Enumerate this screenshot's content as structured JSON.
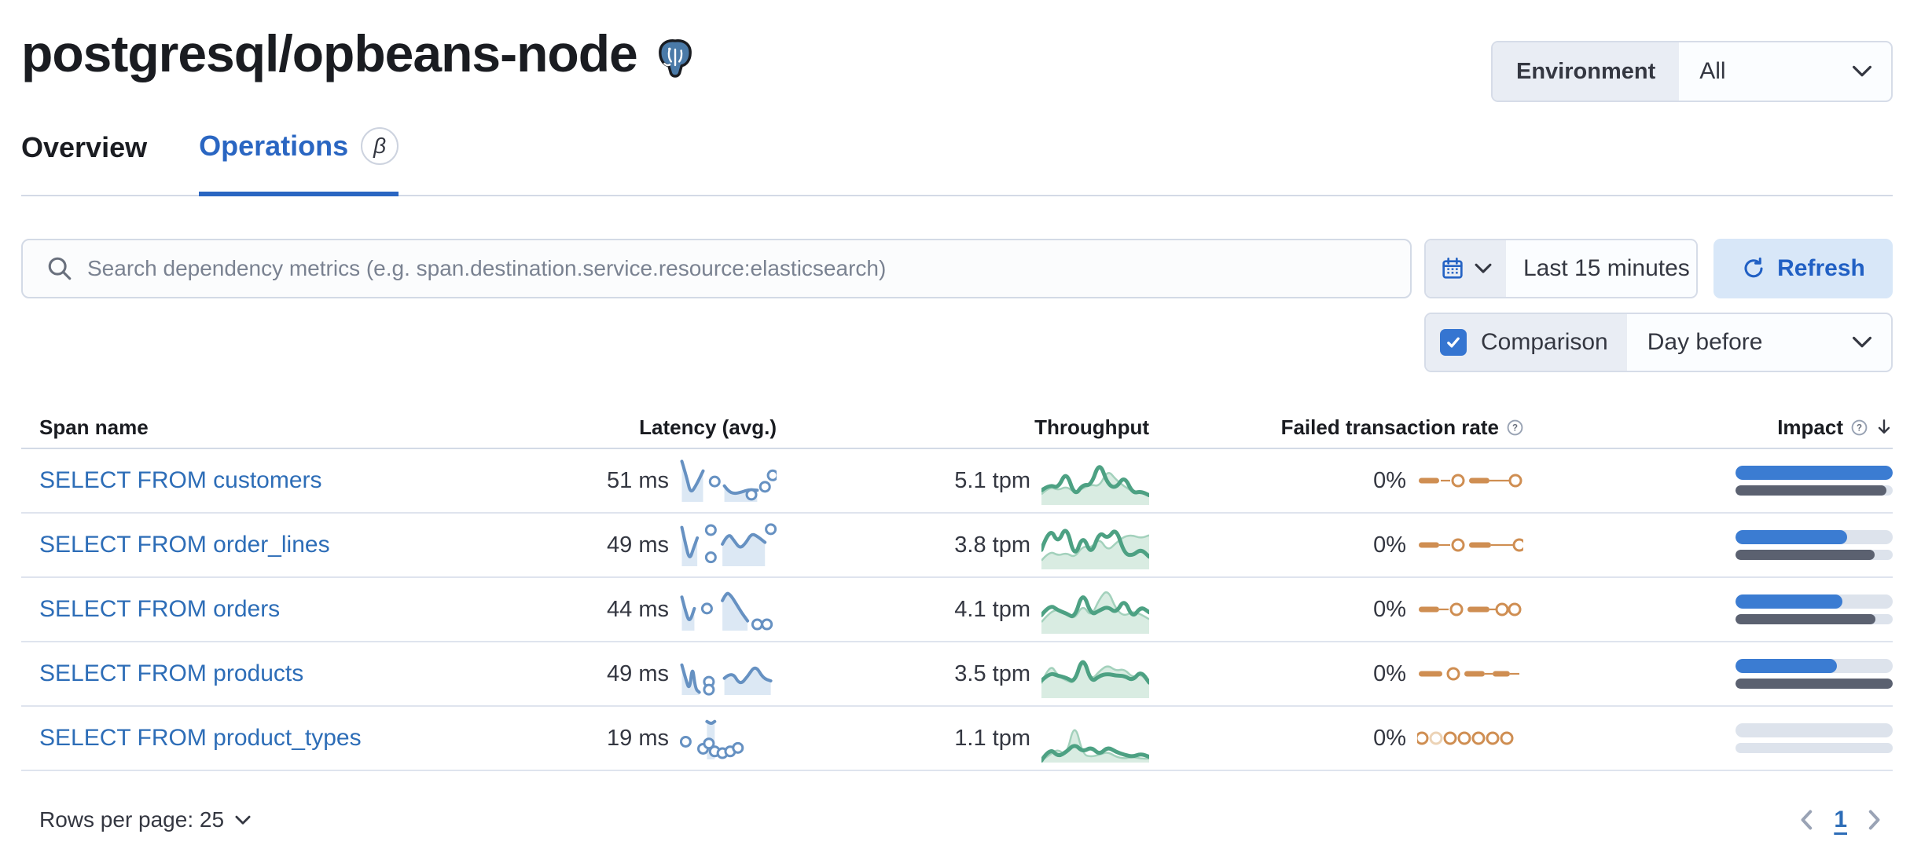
{
  "header": {
    "title": "postgresql/opbeans-node",
    "logo_icon": "postgresql-elephant",
    "env_label": "Environment",
    "env_value": "All"
  },
  "tabs": [
    {
      "label": "Overview",
      "active": false
    },
    {
      "label": "Operations",
      "active": true,
      "beta_badge": "β"
    }
  ],
  "toolbar": {
    "search_placeholder": "Search dependency metrics (e.g. span.destination.service.resource:elasticsearch)",
    "time_range": "Last 15 minutes",
    "refresh_label": "Refresh",
    "comparison_label": "Comparison",
    "comparison_checked": true,
    "comparison_value": "Day before"
  },
  "table": {
    "columns": [
      "Span name",
      "Latency (avg.)",
      "Throughput",
      "Failed transaction rate",
      "Impact"
    ],
    "rows": [
      {
        "name": "SELECT FROM customers",
        "latency": "51 ms",
        "throughput": "5.1 tpm",
        "failed_rate": "0%",
        "latency_spark": {
          "segs": [
            [
              [
                2,
                6
              ],
              [
                7,
                42
              ],
              [
                11,
                80
              ],
              [
                17,
                60
              ],
              [
                24,
                28
              ]
            ],
            [
              [
                46,
                62
              ],
              [
                50,
                74
              ],
              [
                56,
                80
              ],
              [
                64,
                76
              ],
              [
                72,
                70
              ],
              [
                80,
                72
              ]
            ]
          ],
          "dots": [
            [
              36,
              52
            ],
            [
              74,
              82
            ],
            [
              88,
              64
            ],
            [
              96,
              38
            ]
          ]
        },
        "throughput_spark": {
          "current": [
            70,
            58,
            66,
            30,
            82,
            58,
            60,
            10,
            58,
            66,
            40,
            76,
            72,
            80
          ],
          "previous": [
            78,
            62,
            70,
            62,
            74,
            66,
            58,
            62,
            28,
            48,
            62,
            72,
            76,
            78
          ]
        },
        "failed_spark": [
          {
            "d": [
              2,
              28
            ]
          },
          {
            "ln": [
              30,
              42
            ]
          },
          {
            "c": 52
          },
          {
            "d": [
              66,
              92
            ]
          },
          {
            "ln": [
              92,
              118
            ]
          },
          {
            "c": 125
          }
        ],
        "impact": {
          "current": 1.0,
          "previous": 0.96
        }
      },
      {
        "name": "SELECT FROM order_lines",
        "latency": "49 ms",
        "throughput": "3.8 tpm",
        "failed_rate": "0%",
        "latency_spark": {
          "segs": [
            [
              [
                2,
                10
              ],
              [
                6,
                50
              ],
              [
                10,
                84
              ],
              [
                14,
                58
              ],
              [
                18,
                34
              ]
            ],
            [
              [
                44,
                48
              ],
              [
                50,
                22
              ],
              [
                56,
                40
              ],
              [
                62,
                58
              ],
              [
                68,
                46
              ],
              [
                74,
                24
              ],
              [
                80,
                30
              ],
              [
                88,
                44
              ]
            ]
          ],
          "dots": [
            [
              32,
              16
            ],
            [
              32,
              78
            ],
            [
              94,
              14
            ]
          ]
        },
        "throughput_spark": {
          "current": [
            60,
            12,
            48,
            8,
            78,
            28,
            72,
            22,
            38,
            14,
            68,
            72,
            58,
            74
          ],
          "previous": [
            82,
            62,
            72,
            66,
            76,
            52,
            56,
            36,
            62,
            46,
            32,
            30,
            36,
            30
          ]
        },
        "failed_spark": [
          {
            "d": [
              2,
              28
            ]
          },
          {
            "ln": [
              28,
              42
            ]
          },
          {
            "c": 52
          },
          {
            "d": [
              66,
              94
            ]
          },
          {
            "ln": [
              94,
              124
            ]
          },
          {
            "c": 130
          }
        ],
        "impact": {
          "current": 0.71,
          "previous": 0.885
        }
      },
      {
        "name": "SELECT FROM orders",
        "latency": "44 ms",
        "throughput": "4.1 tpm",
        "failed_rate": "0%",
        "latency_spark": {
          "segs": [
            [
              [
                2,
                22
              ],
              [
                6,
                56
              ],
              [
                10,
                80
              ],
              [
                15,
                48
              ]
            ],
            [
              [
                44,
                30
              ],
              [
                48,
                12
              ],
              [
                52,
                16
              ],
              [
                58,
                36
              ],
              [
                64,
                58
              ],
              [
                70,
                76
              ]
            ]
          ],
          "dots": [
            [
              28,
              48
            ],
            [
              80,
              84
            ],
            [
              90,
              84
            ]
          ]
        },
        "throughput_spark": {
          "current": [
            62,
            40,
            52,
            58,
            68,
            12,
            62,
            52,
            44,
            58,
            28,
            68,
            44,
            56
          ],
          "previous": [
            76,
            56,
            50,
            60,
            70,
            40,
            66,
            28,
            8,
            50,
            64,
            54,
            60,
            70
          ]
        },
        "failed_spark": [
          {
            "d": [
              2,
              28
            ]
          },
          {
            "ln": [
              28,
              40
            ]
          },
          {
            "c": 50
          },
          {
            "d": [
              64,
              92
            ]
          },
          {
            "ln": [
              92,
              102
            ]
          },
          {
            "c": 108
          },
          {
            "c": 124
          }
        ],
        "impact": {
          "current": 0.68,
          "previous": 0.89
        }
      },
      {
        "name": "SELECT FROM products",
        "latency": "49 ms",
        "throughput": "3.5 tpm",
        "failed_rate": "0%",
        "latency_spark": {
          "segs": [
            [
              [
                2,
                30
              ],
              [
                6,
                62
              ],
              [
                10,
                88
              ],
              [
                13,
                30
              ],
              [
                16,
                84
              ],
              [
                20,
                92
              ]
            ],
            [
              [
                46,
                60
              ],
              [
                54,
                44
              ],
              [
                62,
                76
              ],
              [
                70,
                56
              ],
              [
                78,
                30
              ],
              [
                86,
                60
              ],
              [
                94,
                66
              ]
            ]
          ],
          "dots": [
            [
              30,
              68
            ],
            [
              30,
              86
            ]
          ]
        },
        "throughput_spark": {
          "current": [
            64,
            48,
            54,
            58,
            68,
            12,
            68,
            54,
            50,
            54,
            54,
            64,
            44,
            68
          ],
          "previous": [
            70,
            28,
            54,
            64,
            70,
            18,
            64,
            44,
            32,
            44,
            40,
            58,
            50,
            70
          ]
        },
        "failed_spark": [
          {
            "d": [
              2,
              32
            ]
          },
          {
            "c": 46
          },
          {
            "d": [
              60,
              86
            ]
          },
          {
            "ln": [
              86,
              96
            ]
          },
          {
            "d": [
              96,
              118
            ]
          },
          {
            "ln": [
              118,
              130
            ]
          }
        ],
        "impact": {
          "current": 0.645,
          "previous": 1.0
        }
      },
      {
        "name": "SELECT FROM product_types",
        "latency": "19 ms",
        "throughput": "1.1 tpm",
        "failed_rate": "0%",
        "latency_spark": {
          "segs": [
            [
              [
                28,
                12
              ],
              [
                32,
                18
              ],
              [
                36,
                12
              ]
            ]
          ],
          "dots": [
            [
              6,
              58
            ],
            [
              24,
              74
            ],
            [
              30,
              62
            ],
            [
              36,
              80
            ],
            [
              44,
              84
            ],
            [
              52,
              80
            ],
            [
              60,
              72
            ]
          ]
        },
        "throughput_spark": {
          "current": [
            96,
            70,
            88,
            78,
            62,
            78,
            68,
            84,
            68,
            78,
            84,
            88,
            82,
            88
          ],
          "previous": [
            96,
            84,
            72,
            88,
            16,
            84,
            88,
            84,
            78,
            88,
            92,
            88,
            92,
            92
          ]
        },
        "failed_spark": [
          {
            "c": 6
          },
          {
            "c": 24,
            "faded": true
          },
          {
            "c": 42
          },
          {
            "c": 60
          },
          {
            "c": 78
          },
          {
            "c": 96
          },
          {
            "c": 114
          }
        ],
        "impact": {
          "current": 0.0,
          "previous": 0.0
        }
      }
    ]
  },
  "footer": {
    "rows_per_page": "Rows per page: 25",
    "page": "1"
  },
  "colors": {
    "accent_blue": "#2d6db7",
    "tab_blue": "#2a66c2",
    "impact_blue": "#3b7cd2",
    "impact_grey": "#5b6170",
    "bar_track": "#dde3ec",
    "green_line": "#4da183",
    "green_prev_line": "#a3d1bc",
    "green_fill": "#d9ece2",
    "orange": "#cf8e52",
    "orange_faded": "#ecd3b6",
    "latency_line": "#6691c2",
    "latency_fill": "#dce8f4",
    "border": "#d3dae6",
    "checkbox_blue": "#3575d1",
    "refresh_bg": "#d8e7f8",
    "refresh_text": "#2160c4"
  }
}
